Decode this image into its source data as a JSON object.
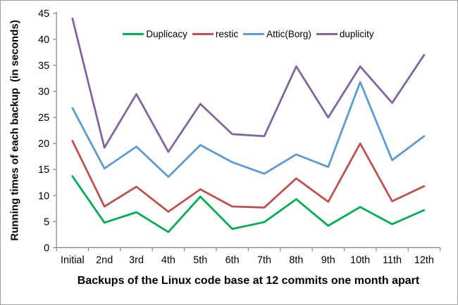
{
  "chart_data": {
    "type": "line",
    "title": "",
    "categories": [
      "Initial",
      "2nd",
      "3rd",
      "4th",
      "5th",
      "6th",
      "7th",
      "8th",
      "9th",
      "10th",
      "11th",
      "12th"
    ],
    "series": [
      {
        "name": "Duplicacy",
        "color": "#00B050",
        "values": [
          13.7,
          4.8,
          6.8,
          3.0,
          9.8,
          3.6,
          4.9,
          9.3,
          4.2,
          7.8,
          4.5,
          7.2
        ]
      },
      {
        "name": "restic",
        "color": "#C0504D",
        "values": [
          20.5,
          7.9,
          11.7,
          6.9,
          11.2,
          7.9,
          7.7,
          13.3,
          8.8,
          20.0,
          8.9,
          11.8
        ]
      },
      {
        "name": "Attic(Borg)",
        "color": "#5B9BD5",
        "values": [
          26.8,
          15.2,
          19.4,
          13.6,
          19.7,
          16.4,
          14.2,
          17.9,
          15.5,
          31.8,
          16.8,
          21.4
        ]
      },
      {
        "name": "duplicity",
        "color": "#8064A2",
        "values": [
          44.0,
          19.2,
          29.5,
          18.4,
          27.6,
          21.8,
          21.4,
          34.8,
          25.0,
          34.8,
          27.8,
          37.0
        ]
      }
    ],
    "xlabel": "Backups of the Linux code base at 12 commits one month apart",
    "ylabel": "Running times of each backup  (in seconds)",
    "ylim": [
      0,
      45
    ],
    "ytick_step": 5,
    "grid": false,
    "legend_position": "top-center"
  },
  "colors": {
    "axis": "#808080",
    "text": "#000000",
    "border": "#9d9d9d",
    "background": "#ffffff"
  }
}
